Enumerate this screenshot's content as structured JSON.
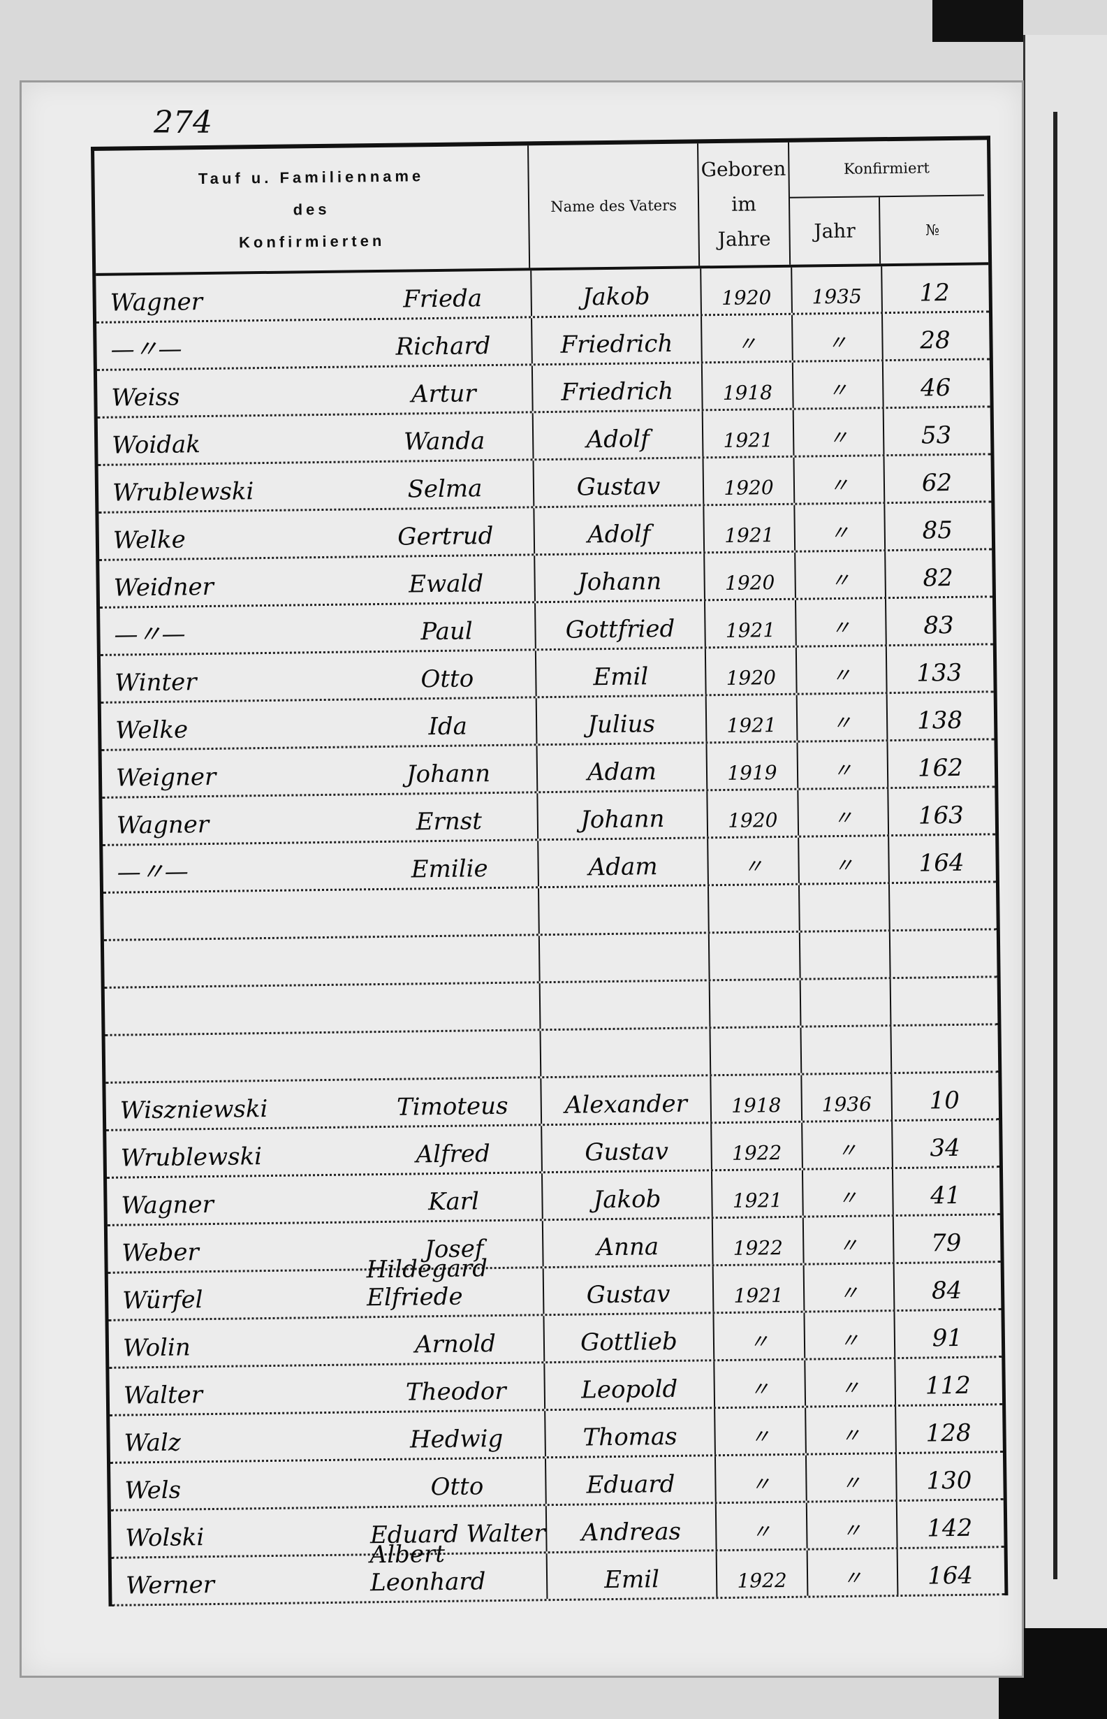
{
  "page_number": "274",
  "header": {
    "col_name": [
      "Tauf u. Familienname",
      "des",
      "Konfirmierten"
    ],
    "col_father": "Name des Vaters",
    "col_born": [
      "Geboren",
      "im",
      "Jahre"
    ],
    "col_confirmed": "Konfirmiert",
    "col_confirmed_year": "Jahr",
    "col_confirmed_no": "№"
  },
  "rows": [
    {
      "family": "Wagner",
      "given": "Frieda",
      "father": "Jakob",
      "born": "1920",
      "year": "1935",
      "no": "12"
    },
    {
      "family": "—〃—",
      "given": "Richard",
      "father": "Friedrich",
      "born": "〃",
      "year": "〃",
      "no": "28"
    },
    {
      "family": "Weiss",
      "given": "Artur",
      "father": "Friedrich",
      "born": "1918",
      "year": "〃",
      "no": "46"
    },
    {
      "family": "Woidak",
      "given": "Wanda",
      "father": "Adolf",
      "born": "1921",
      "year": "〃",
      "no": "53"
    },
    {
      "family": "Wrublewski",
      "given": "Selma",
      "father": "Gustav",
      "born": "1920",
      "year": "〃",
      "no": "62"
    },
    {
      "family": "Welke",
      "given": "Gertrud",
      "father": "Adolf",
      "born": "1921",
      "year": "〃",
      "no": "85"
    },
    {
      "family": "Weidner",
      "given": "Ewald",
      "father": "Johann",
      "born": "1920",
      "year": "〃",
      "no": "82"
    },
    {
      "family": "—〃—",
      "given": "Paul",
      "father": "Gottfried",
      "born": "1921",
      "year": "〃",
      "no": "83"
    },
    {
      "family": "Winter",
      "given": "Otto",
      "father": "Emil",
      "born": "1920",
      "year": "〃",
      "no": "133"
    },
    {
      "family": "Welke",
      "given": "Ida",
      "father": "Julius",
      "born": "1921",
      "year": "〃",
      "no": "138"
    },
    {
      "family": "Weigner",
      "given": "Johann",
      "father": "Adam",
      "born": "1919",
      "year": "〃",
      "no": "162"
    },
    {
      "family": "Wagner",
      "given": "Ernst",
      "father": "Johann",
      "born": "1920",
      "year": "〃",
      "no": "163"
    },
    {
      "family": "—〃—",
      "given": "Emilie",
      "father": "Adam",
      "born": "〃",
      "year": "〃",
      "no": "164"
    },
    {
      "family": "",
      "given": "",
      "father": "",
      "born": "",
      "year": "",
      "no": ""
    },
    {
      "family": "",
      "given": "",
      "father": "",
      "born": "",
      "year": "",
      "no": ""
    },
    {
      "family": "",
      "given": "",
      "father": "",
      "born": "",
      "year": "",
      "no": ""
    },
    {
      "family": "",
      "given": "",
      "father": "",
      "born": "",
      "year": "",
      "no": ""
    },
    {
      "family": "Wiszniewski",
      "given": "Timoteus",
      "father": "Alexander",
      "born": "1918",
      "year": "1936",
      "no": "10"
    },
    {
      "family": "Wrublewski",
      "given": "Alfred",
      "father": "Gustav",
      "born": "1922",
      "year": "〃",
      "no": "34"
    },
    {
      "family": "Wagner",
      "given": "Karl",
      "father": "Jakob",
      "born": "1921",
      "year": "〃",
      "no": "41"
    },
    {
      "family": "Weber",
      "given": "Josef",
      "father": "Anna",
      "born": "1922",
      "year": "〃",
      "no": "79"
    },
    {
      "family": "Würfel",
      "given": "Hildegard Elfriede",
      "father": "Gustav",
      "born": "1921",
      "year": "〃",
      "no": "84"
    },
    {
      "family": "Wolin",
      "given": "Arnold",
      "father": "Gottlieb",
      "born": "〃",
      "year": "〃",
      "no": "91"
    },
    {
      "family": "Walter",
      "given": "Theodor",
      "father": "Leopold",
      "born": "〃",
      "year": "〃",
      "no": "112"
    },
    {
      "family": "Walz",
      "given": "Hedwig",
      "father": "Thomas",
      "born": "〃",
      "year": "〃",
      "no": "128"
    },
    {
      "family": "Wels",
      "given": "Otto",
      "father": "Eduard",
      "born": "〃",
      "year": "〃",
      "no": "130"
    },
    {
      "family": "Wolski",
      "given": "Eduard Walter",
      "father": "Andreas",
      "born": "〃",
      "year": "〃",
      "no": "142"
    },
    {
      "family": "Werner",
      "given": "Albert Leonhard",
      "father": "Emil",
      "born": "1922",
      "year": "〃",
      "no": "164"
    }
  ]
}
